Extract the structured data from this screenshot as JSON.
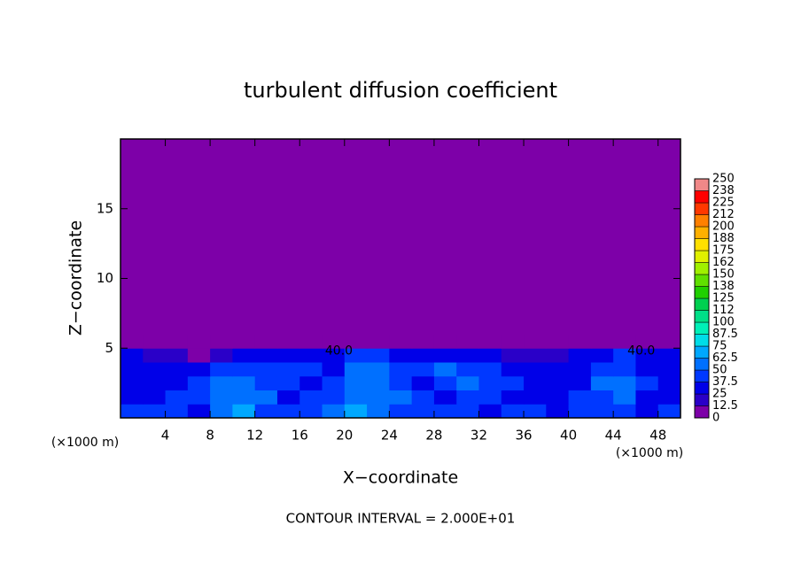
{
  "chart_data": {
    "type": "contour",
    "title": "turbulent diffusion coefficient",
    "x_label": "X−coordinate",
    "y_label": "Z−coordinate",
    "x_unit": "(×1000 m)",
    "x_unit_right": "(×1000 m)",
    "footer": "CONTOUR INTERVAL = 2.000E+01",
    "xlim": [
      0,
      50
    ],
    "xticks": [
      4,
      8,
      12,
      16,
      20,
      24,
      28,
      32,
      36,
      40,
      44,
      48
    ],
    "ylim": [
      0,
      20
    ],
    "yticks": [
      5,
      10,
      15
    ],
    "colorbar": {
      "levels": [
        0,
        12.5,
        25,
        37.5,
        50,
        62.5,
        75,
        87.5,
        100,
        112,
        125,
        138,
        150,
        162,
        175,
        188,
        200,
        212,
        225,
        238,
        250
      ],
      "colors": [
        "#7d00a8",
        "#2a00c8",
        "#0000e8",
        "#0038ff",
        "#0070ff",
        "#00a8ff",
        "#00dde8",
        "#00f0b8",
        "#00e088",
        "#00d050",
        "#20d000",
        "#60e000",
        "#a0f000",
        "#e0f000",
        "#ffe000",
        "#ffb000",
        "#ff8000",
        "#ff3800",
        "#ff0000",
        "#f08888"
      ]
    },
    "field": {
      "x": [
        1,
        3,
        5,
        7,
        9,
        11,
        13,
        15,
        17,
        19,
        21,
        23,
        25,
        27,
        29,
        31,
        33,
        35,
        37,
        39,
        41,
        43,
        45,
        47,
        49
      ],
      "y": [
        0.5,
        1.5,
        2.5,
        3.5,
        4.5,
        5.5
      ],
      "values": [
        [
          40,
          45,
          40,
          35,
          55,
          70,
          45,
          40,
          45,
          50,
          65,
          60,
          45,
          40,
          45,
          40,
          35,
          45,
          40,
          35,
          40,
          45,
          40,
          35,
          40
        ],
        [
          30,
          35,
          40,
          45,
          60,
          55,
          50,
          35,
          45,
          40,
          60,
          55,
          50,
          40,
          35,
          45,
          40,
          35,
          30,
          35,
          45,
          40,
          50,
          35,
          30
        ],
        [
          35,
          30,
          35,
          40,
          55,
          50,
          45,
          40,
          35,
          45,
          55,
          60,
          45,
          35,
          40,
          50,
          45,
          40,
          35,
          30,
          35,
          50,
          55,
          40,
          35
        ],
        [
          25,
          30,
          25,
          35,
          40,
          45,
          40,
          45,
          40,
          35,
          50,
          55,
          40,
          45,
          50,
          45,
          40,
          35,
          30,
          25,
          30,
          45,
          40,
          30,
          25
        ],
        [
          30,
          20,
          15,
          10,
          20,
          30,
          25,
          35,
          35,
          30,
          40,
          45,
          25,
          30,
          35,
          30,
          25,
          20,
          20,
          15,
          25,
          35,
          40,
          30,
          25
        ],
        [
          0,
          0,
          0,
          0,
          0,
          5,
          5,
          0,
          0,
          0,
          5,
          0,
          0,
          0,
          5,
          0,
          0,
          0,
          0,
          0,
          0,
          5,
          10,
          0,
          0
        ]
      ]
    },
    "annotations": [
      {
        "text": "40.0",
        "x": 19.5,
        "y": 4.8
      },
      {
        "text": "40.0",
        "x": 46.5,
        "y": 4.8
      }
    ]
  }
}
